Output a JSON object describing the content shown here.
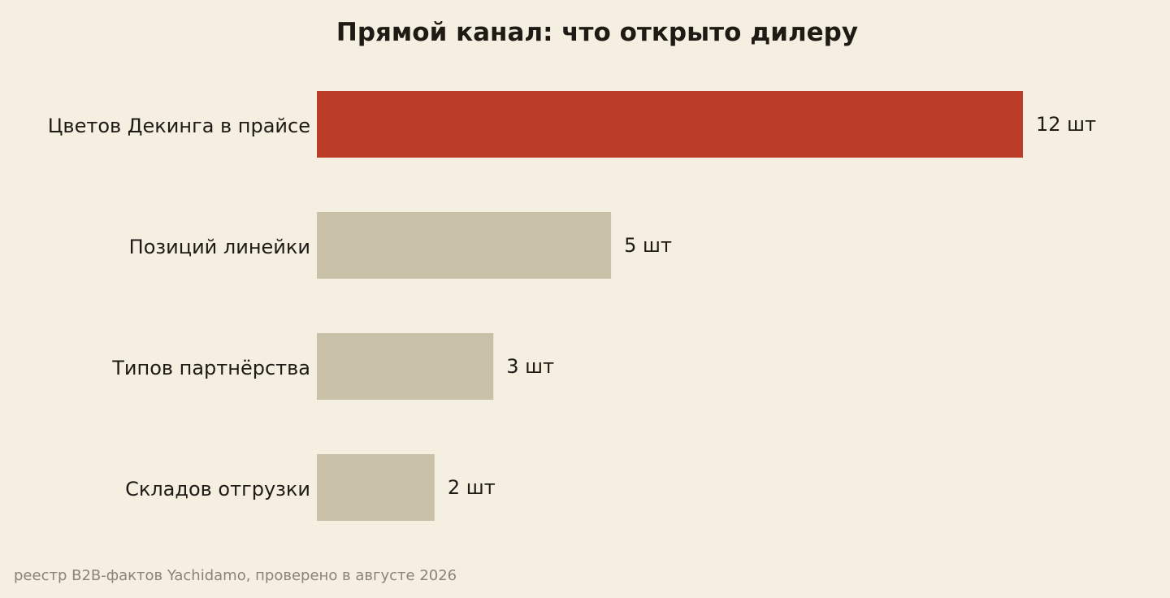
{
  "chart_data": {
    "type": "bar",
    "orientation": "horizontal",
    "title": "Прямой канал: что открыто дилеру",
    "categories": [
      "Цветов Декинга в прайсе",
      "Позиций линейки",
      "Типов партнёрства",
      "Складов отгрузки"
    ],
    "values": [
      12,
      5,
      3,
      2
    ],
    "value_labels": [
      "12 шт",
      "5 шт",
      "3 шт",
      "2 шт"
    ],
    "highlight_index": 0,
    "xlim": [
      0,
      12
    ],
    "grid": false,
    "xlabel": "",
    "ylabel": ""
  },
  "colors": {
    "background": "#f5efe2",
    "highlight": "#bb3d28",
    "bar": "#c9c0a8",
    "text": "#1f1b14",
    "source": "#8a8377"
  },
  "source": "реестр B2B-фактов Yachidamo, проверено в августе 2026"
}
